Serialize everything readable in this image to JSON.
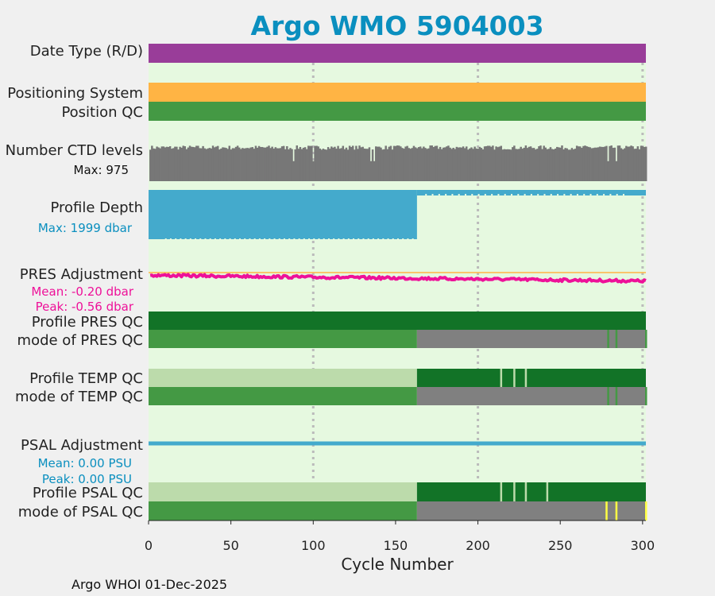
{
  "chart_data": {
    "type": "bar",
    "title": "Argo WMO 5904003",
    "xlabel": "Cycle Number",
    "xlim": [
      0,
      302
    ],
    "xticks": [
      0,
      50,
      100,
      150,
      200,
      250,
      300
    ],
    "grid": "vertical dotted at 100, 200, 300",
    "footer": "Argo WHOI 01-Dec-2025",
    "colors": {
      "panel_bg": "#e6f9e0",
      "date_type": "#993d99",
      "positioning": "#ffb444",
      "qc_good": "#449944",
      "qc_dark": "#127327",
      "qc_light": "#bcdbab",
      "qc_gray": "#808080",
      "qc_yellow": "#ffff44",
      "ctd": "#777777",
      "depth": "#44aacc",
      "pres_adj": "#ee1199",
      "zero_line": "#ffb444",
      "psal_adj": "#44aacc",
      "grid": "#bbbbbb",
      "title": "#0a8fbf"
    },
    "rows": {
      "date_type": {
        "label": "Date Type (R/D)",
        "segments": [
          {
            "from": 0,
            "to": 302,
            "color": "date_type"
          }
        ]
      },
      "positioning": {
        "label": "Positioning System",
        "segments": [
          {
            "from": 0,
            "to": 302,
            "color": "positioning"
          }
        ]
      },
      "position_qc": {
        "label": "Position QC",
        "segments": [
          {
            "from": 0,
            "to": 302,
            "color": "qc_good"
          }
        ]
      },
      "ctd_levels": {
        "label": "Number CTD levels",
        "max_label": "Max: 975",
        "max": 975,
        "low_cycles": [
          88,
          100,
          135,
          137,
          279,
          284
        ],
        "low_value": 0.56
      },
      "profile_depth": {
        "label": "Profile Depth",
        "max_label": "Max: 1999 dbar",
        "max": 1999,
        "switch_cycle": 163
      },
      "pres_adjustment": {
        "label": "PRES Adjustment",
        "mean_label": "Mean: -0.20 dbar",
        "peak_label": "Peak: -0.56 dbar",
        "mean": -0.2,
        "peak": -0.56
      },
      "profile_pres_qc": {
        "label": "Profile PRES QC",
        "segments": [
          {
            "from": 0,
            "to": 302,
            "color": "qc_dark"
          }
        ]
      },
      "mode_pres_qc": {
        "label": "mode of PRES QC",
        "segments": [
          {
            "from": 0,
            "to": 163,
            "color": "qc_good"
          },
          {
            "from": 163,
            "to": 302,
            "color": "qc_gray"
          }
        ],
        "marks": [
          {
            "at": 279,
            "color": "qc_good"
          },
          {
            "at": 284,
            "color": "qc_good"
          },
          {
            "at": 302,
            "color": "qc_good"
          }
        ]
      },
      "profile_temp_qc": {
        "label": "Profile TEMP QC",
        "segments": [
          {
            "from": 0,
            "to": 163,
            "color": "qc_light"
          },
          {
            "from": 163,
            "to": 302,
            "color": "qc_dark"
          }
        ],
        "marks": [
          {
            "at": 214,
            "color": "qc_light"
          },
          {
            "at": 222,
            "color": "qc_light"
          },
          {
            "at": 229,
            "color": "qc_light"
          }
        ]
      },
      "mode_temp_qc": {
        "label": "mode of TEMP QC",
        "segments": [
          {
            "from": 0,
            "to": 163,
            "color": "qc_good"
          },
          {
            "from": 163,
            "to": 302,
            "color": "qc_gray"
          }
        ],
        "marks": [
          {
            "at": 279,
            "color": "qc_good"
          },
          {
            "at": 284,
            "color": "qc_good"
          },
          {
            "at": 302,
            "color": "qc_good"
          }
        ]
      },
      "psal_adjustment": {
        "label": "PSAL Adjustment",
        "mean_label": "Mean: 0.00 PSU",
        "peak_label": "Peak: 0.00 PSU",
        "mean": 0.0,
        "peak": 0.0
      },
      "profile_psal_qc": {
        "label": "Profile PSAL QC",
        "segments": [
          {
            "from": 0,
            "to": 163,
            "color": "qc_light"
          },
          {
            "from": 163,
            "to": 302,
            "color": "qc_dark"
          }
        ],
        "marks": [
          {
            "at": 214,
            "color": "qc_light"
          },
          {
            "at": 222,
            "color": "qc_light"
          },
          {
            "at": 229,
            "color": "qc_light"
          },
          {
            "at": 242,
            "color": "qc_light"
          }
        ]
      },
      "mode_psal_qc": {
        "label": "mode of PSAL QC",
        "segments": [
          {
            "from": 0,
            "to": 163,
            "color": "qc_good"
          },
          {
            "from": 163,
            "to": 302,
            "color": "qc_gray"
          }
        ],
        "marks": [
          {
            "at": 278,
            "color": "qc_yellow"
          },
          {
            "at": 284,
            "color": "qc_yellow"
          },
          {
            "at": 302,
            "color": "qc_yellow"
          }
        ]
      }
    }
  }
}
